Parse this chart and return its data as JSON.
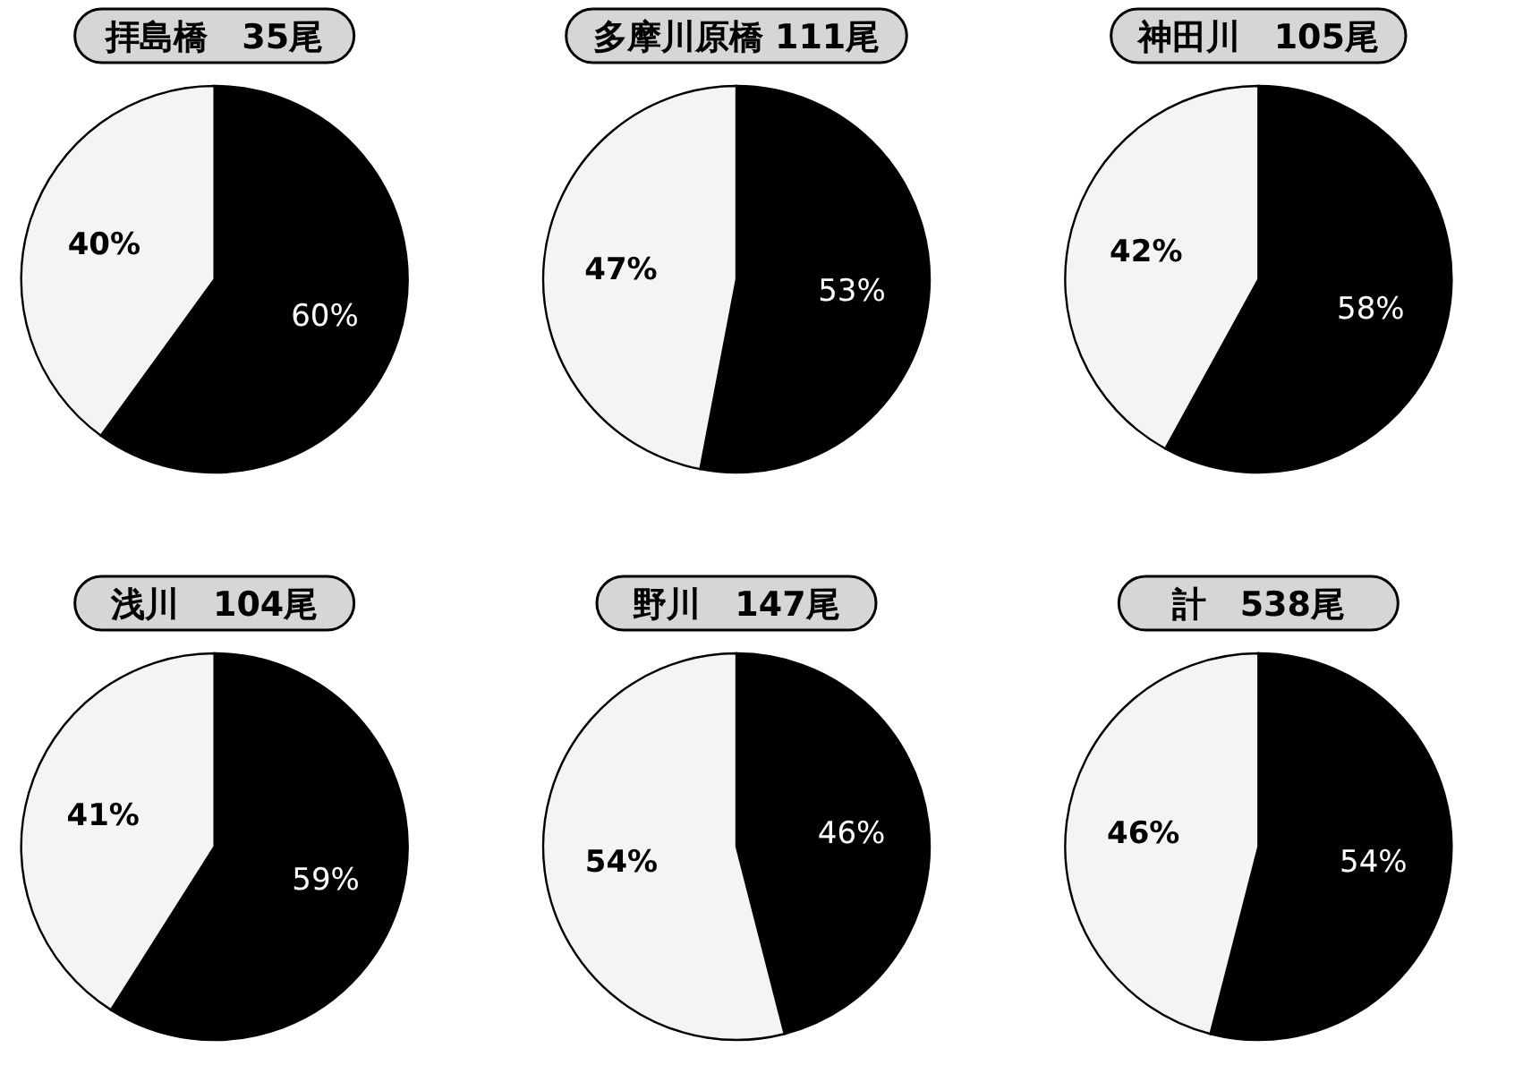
{
  "chart_data": [
    {
      "type": "pie",
      "title": "拝島橋　35尾",
      "categories": [
        null,
        null
      ],
      "values": [
        60,
        40
      ],
      "colors": [
        "#000000",
        "#f4f4f4"
      ],
      "value_labels": [
        "60%",
        "40%"
      ]
    },
    {
      "type": "pie",
      "title": "多摩川原橋 111尾",
      "categories": [
        null,
        null
      ],
      "values": [
        53,
        47
      ],
      "colors": [
        "#000000",
        "#f4f4f4"
      ],
      "value_labels": [
        "53%",
        "47%"
      ]
    },
    {
      "type": "pie",
      "title": "神田川　105尾",
      "categories": [
        null,
        null
      ],
      "values": [
        58,
        42
      ],
      "colors": [
        "#000000",
        "#f4f4f4"
      ],
      "value_labels": [
        "58%",
        "42%"
      ]
    },
    {
      "type": "pie",
      "title": "浅川　104尾",
      "categories": [
        null,
        null
      ],
      "values": [
        59,
        41
      ],
      "colors": [
        "#000000",
        "#f4f4f4"
      ],
      "value_labels": [
        "59%",
        "41%"
      ]
    },
    {
      "type": "pie",
      "title": "野川　147尾",
      "categories": [
        null,
        null
      ],
      "values": [
        46,
        54
      ],
      "colors": [
        "#000000",
        "#f4f4f4"
      ],
      "value_labels": [
        "46%",
        "54%"
      ]
    },
    {
      "type": "pie",
      "title": "計　538尾",
      "categories": [
        null,
        null
      ],
      "values": [
        54,
        46
      ],
      "colors": [
        "#000000",
        "#f4f4f4"
      ],
      "value_labels": [
        "54%",
        "46%"
      ]
    }
  ]
}
